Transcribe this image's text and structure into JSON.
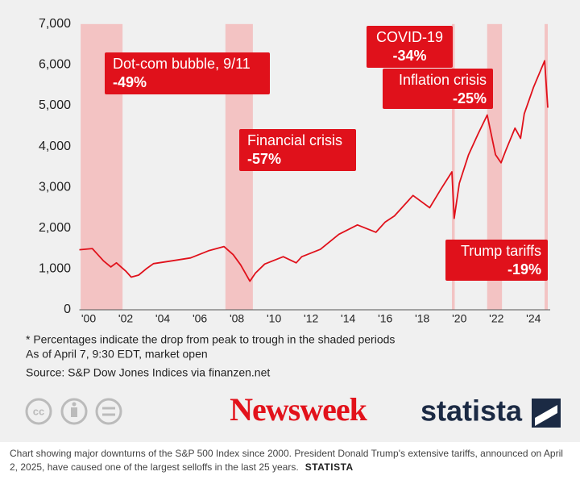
{
  "chart_data": {
    "type": "line",
    "x": [
      2000.0,
      2000.7,
      2001.0,
      2001.3,
      2001.7,
      2002.0,
      2002.5,
      2002.8,
      2003.2,
      2003.6,
      2004.0,
      2005.0,
      2006.0,
      2007.0,
      2007.8,
      2008.3,
      2008.7,
      2009.2,
      2009.5,
      2010.0,
      2011.0,
      2011.7,
      2012.0,
      2013.0,
      2014.0,
      2015.0,
      2016.0,
      2016.5,
      2017.0,
      2018.0,
      2018.9,
      2019.5,
      2020.1,
      2020.22,
      2020.5,
      2021.0,
      2021.5,
      2022.0,
      2022.45,
      2022.75,
      2023.0,
      2023.5,
      2023.8,
      2024.0,
      2024.5,
      2025.1,
      2025.27
    ],
    "values": [
      1470,
      1500,
      1350,
      1200,
      1050,
      1150,
      950,
      800,
      850,
      1000,
      1130,
      1200,
      1270,
      1450,
      1550,
      1350,
      1100,
      700,
      900,
      1120,
      1300,
      1150,
      1300,
      1480,
      1850,
      2080,
      1900,
      2150,
      2300,
      2800,
      2500,
      2950,
      3380,
      2240,
      3100,
      3800,
      4300,
      4770,
      3800,
      3600,
      3900,
      4450,
      4200,
      4800,
      5450,
      6100,
      4950
    ],
    "color": "#e0111b",
    "xlim": [
      2000.0,
      2025.4
    ],
    "ylim": [
      0,
      7000
    ],
    "xticks": [
      {
        "value": 2000,
        "label": "'00"
      },
      {
        "value": 2002,
        "label": "'02"
      },
      {
        "value": 2004,
        "label": "'04"
      },
      {
        "value": 2006,
        "label": "'06"
      },
      {
        "value": 2008,
        "label": "'08"
      },
      {
        "value": 2010,
        "label": "'10"
      },
      {
        "value": 2012,
        "label": "'12"
      },
      {
        "value": 2014,
        "label": "'14"
      },
      {
        "value": 2016,
        "label": "'16"
      },
      {
        "value": 2018,
        "label": "'18"
      },
      {
        "value": 2020,
        "label": "'20"
      },
      {
        "value": 2022,
        "label": "'22"
      },
      {
        "value": 2024,
        "label": "'24"
      }
    ],
    "yticks": [
      0,
      {
        "value": 1000,
        "label": "1,000"
      },
      {
        "value": 2000,
        "label": "2,000"
      },
      {
        "value": 3000,
        "label": "3,000"
      },
      {
        "value": 4000,
        "label": "4,000"
      },
      {
        "value": 5000,
        "label": "5,000"
      },
      {
        "value": 6000,
        "label": "6,000"
      },
      {
        "value": 7000,
        "label": "7,000"
      }
    ],
    "grid": false,
    "shade_color": "#f3c3c3",
    "annotations": [
      {
        "text": "Dot-com bubble, 9/11",
        "drop": "-49%",
        "period": [
          2000.07,
          2002.33
        ]
      },
      {
        "text": "Financial crisis",
        "drop": "-57%",
        "period": [
          2007.88,
          2009.36
        ]
      },
      {
        "text": "COVID-19",
        "drop": "-34%",
        "period": [
          2020.1,
          2020.25
        ]
      },
      {
        "text": "Inflation crisis",
        "drop": "-25%",
        "period": [
          2022.0,
          2022.8
        ]
      },
      {
        "text": "Trump tariffs",
        "drop": "-19%",
        "period": [
          2025.1,
          2025.27
        ]
      }
    ],
    "notes": [
      "* Percentages indicate the drop from peak to trough in the shaded periods",
      "As of April 7, 9:30 EDT, market open",
      "Source: S&P Dow Jones Indices via finanzen.net"
    ]
  },
  "logos": {
    "newsweek": "Newsweek",
    "statista": "statista"
  },
  "caption": {
    "text": "Chart showing major downturns of the S&P 500 Index since 2000. President Donald Trump's extensive tariffs, announced on April 2, 2025, have caused one of the largest selloffs in the last 25 years.",
    "credit": "STATISTA"
  }
}
